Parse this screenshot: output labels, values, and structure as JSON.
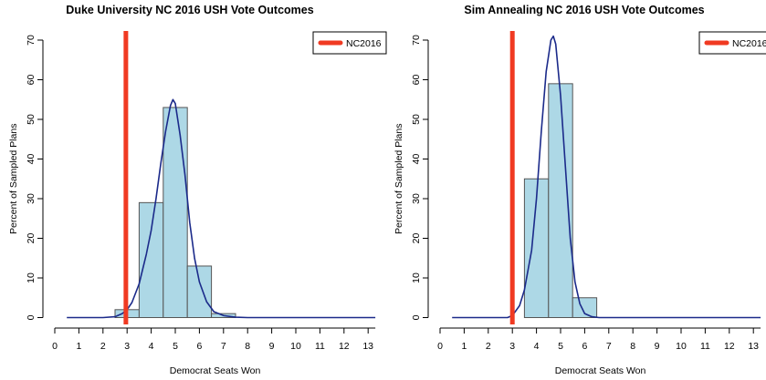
{
  "chart_data": [
    {
      "type": "bar",
      "title": "Duke University NC 2016 USH Vote Outcomes",
      "xlabel": "Democrat Seats Won",
      "ylabel": "Percent of Sampled Plans",
      "xlim": [
        0,
        13.3
      ],
      "ylim": [
        0,
        70
      ],
      "xticks": [
        "0",
        "1",
        "2",
        "3",
        "4",
        "5",
        "6",
        "7",
        "8",
        "9",
        "10",
        "11",
        "12",
        "13"
      ],
      "yticks": [
        "0",
        "10",
        "20",
        "30",
        "40",
        "50",
        "60",
        "70"
      ],
      "categories": [
        "3",
        "4",
        "5",
        "6",
        "7"
      ],
      "values": [
        2,
        29,
        53,
        13,
        1
      ],
      "density_curve": {
        "x": [
          0.5,
          1,
          1.5,
          2,
          2.5,
          2.8,
          3,
          3.2,
          3.5,
          3.8,
          4,
          4.2,
          4.4,
          4.6,
          4.8,
          4.9,
          5,
          5.2,
          5.4,
          5.6,
          5.8,
          6,
          6.3,
          6.6,
          7,
          7.5,
          8,
          9,
          10,
          11,
          12,
          13.3
        ],
        "y": [
          0,
          0,
          0,
          0,
          0.2,
          1,
          2,
          3.8,
          8.5,
          16,
          22,
          30,
          39,
          47,
          53.5,
          55,
          54,
          46,
          36,
          24,
          15,
          9,
          4,
          1.5,
          0.5,
          0.1,
          0,
          0,
          0,
          0,
          0,
          0
        ]
      },
      "reference_line": {
        "name": "NC2016",
        "x": 2.95,
        "color": "#f03a22"
      },
      "legend": {
        "position": "top-right",
        "entries": [
          "NC2016"
        ]
      },
      "bar_fill": "#add8e6",
      "curve_color": "#1b2a8a"
    },
    {
      "type": "bar",
      "title": "Sim Annealing NC 2016 USH Vote Outcomes",
      "xlabel": "Democrat Seats Won",
      "ylabel": "Percent of Sampled Plans",
      "xlim": [
        0,
        13.3
      ],
      "ylim": [
        0,
        70
      ],
      "xticks": [
        "0",
        "1",
        "2",
        "3",
        "4",
        "5",
        "6",
        "7",
        "8",
        "9",
        "10",
        "11",
        "12",
        "13"
      ],
      "yticks": [
        "0",
        "10",
        "20",
        "30",
        "40",
        "50",
        "60",
        "70"
      ],
      "categories": [
        "4",
        "5",
        "6"
      ],
      "values": [
        35,
        59,
        5
      ],
      "density_curve": {
        "x": [
          0.5,
          1,
          2,
          2.8,
          3,
          3.3,
          3.5,
          3.8,
          4,
          4.2,
          4.4,
          4.6,
          4.7,
          4.8,
          5,
          5.2,
          5.4,
          5.6,
          5.8,
          6,
          6.3,
          6.6,
          7,
          8,
          9,
          10,
          11,
          12,
          13.3
        ],
        "y": [
          0,
          0,
          0,
          0,
          0.5,
          3,
          7,
          17,
          30,
          47,
          62,
          70,
          71,
          69,
          56,
          38,
          20,
          9,
          3.5,
          1,
          0.2,
          0,
          0,
          0,
          0,
          0,
          0,
          0,
          0
        ]
      },
      "reference_line": {
        "name": "NC2016",
        "x": 3,
        "color": "#f03a22"
      },
      "legend": {
        "position": "top-right",
        "entries": [
          "NC2016"
        ]
      },
      "bar_fill": "#add8e6",
      "curve_color": "#1b2a8a"
    }
  ]
}
